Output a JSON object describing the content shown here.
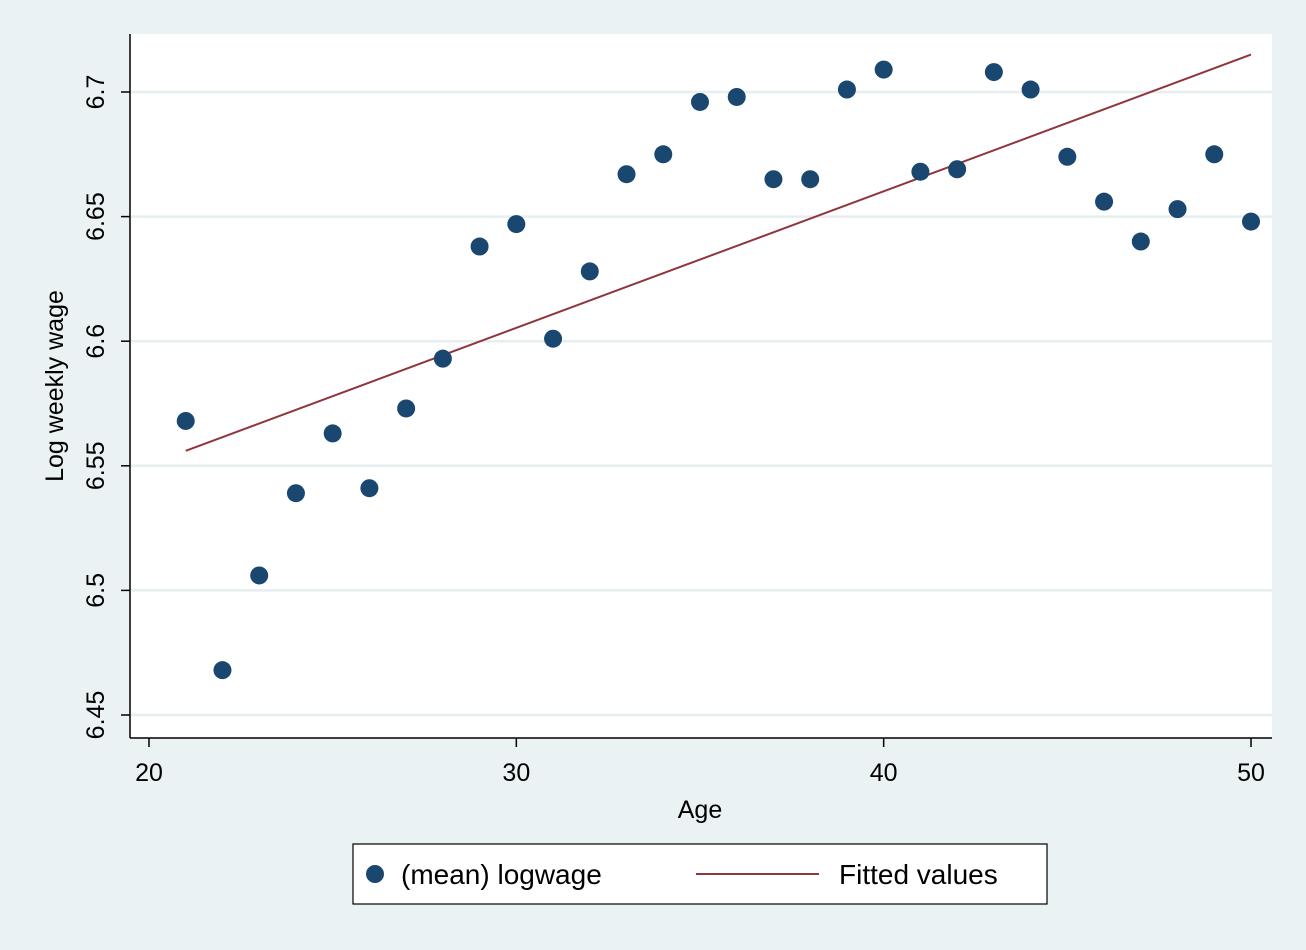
{
  "chart_data": {
    "type": "scatter",
    "title": "",
    "xlabel": "Age",
    "ylabel": "Log weekly wage",
    "xlim": [
      19.5,
      50.6
    ],
    "ylim": [
      6.444,
      6.724
    ],
    "xticks": [
      20,
      30,
      40,
      50
    ],
    "xtick_labels": [
      "20",
      "30",
      "40",
      "50"
    ],
    "yticks": [
      6.45,
      6.5,
      6.55,
      6.6,
      6.65,
      6.7
    ],
    "ytick_labels": [
      "6.45",
      "6.5",
      "6.55",
      "6.6",
      "6.65",
      "6.7"
    ],
    "grid": "horizontal",
    "legend_position": "bottom",
    "series": [
      {
        "name": "(mean) logwage",
        "kind": "scatter",
        "color": "#1a476f",
        "x": [
          21,
          22,
          23,
          24,
          25,
          26,
          27,
          28,
          29,
          30,
          31,
          32,
          33,
          34,
          35,
          36,
          37,
          38,
          39,
          40,
          41,
          42,
          43,
          44,
          45,
          46,
          47,
          48,
          49,
          50
        ],
        "y": [
          6.568,
          6.468,
          6.506,
          6.539,
          6.563,
          6.541,
          6.573,
          6.593,
          6.638,
          6.647,
          6.601,
          6.628,
          6.667,
          6.675,
          6.696,
          6.698,
          6.665,
          6.665,
          6.701,
          6.709,
          6.668,
          6.669,
          6.708,
          6.701,
          6.674,
          6.656,
          6.64,
          6.653,
          6.675,
          6.648
        ]
      },
      {
        "name": "Fitted values",
        "kind": "line",
        "color": "#90353b",
        "x": [
          21,
          50
        ],
        "y": [
          6.556,
          6.715
        ]
      }
    ]
  }
}
